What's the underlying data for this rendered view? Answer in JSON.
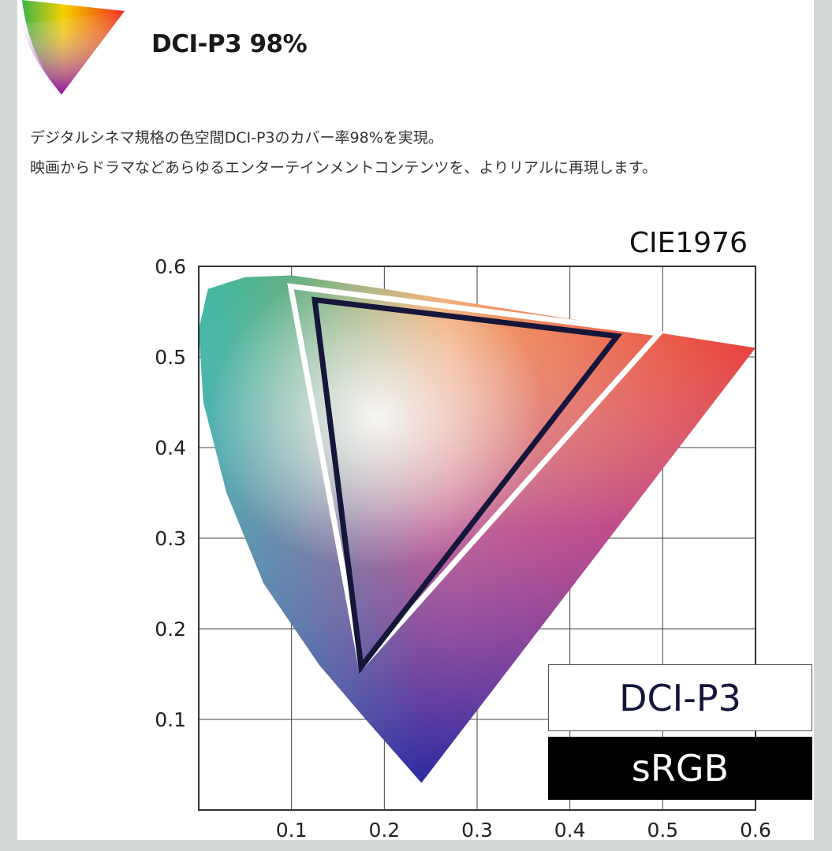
{
  "header": {
    "title": "DCI-P3 98%",
    "logo_icon": "color-gamut-triangle-icon"
  },
  "description": [
    "デジタルシネマ規格の色空間DCI-P3のカバー率98%を実現。",
    "映画からドラマなどあらゆるエンターテインメントコンテンツを、よりリアルに再現します。"
  ],
  "chart_data": {
    "type": "scatter",
    "title": "CIE1976",
    "xlim": [
      0,
      0.6
    ],
    "ylim": [
      0,
      0.6
    ],
    "x_ticks": [
      "0.1",
      "0.2",
      "0.3",
      "0.4",
      "0.5",
      "0.6"
    ],
    "y_ticks": [
      "0.1",
      "0.2",
      "0.3",
      "0.4",
      "0.5",
      "0.6"
    ],
    "grid": true,
    "legend": [
      "DCI-P3",
      "sRGB"
    ],
    "legend_placement": "bottom-right",
    "spectral_locus": [
      [
        0.6,
        0.51
      ],
      [
        0.35,
        0.55
      ],
      [
        0.2,
        0.575
      ],
      [
        0.1,
        0.59
      ],
      [
        0.05,
        0.588
      ],
      [
        0.01,
        0.575
      ],
      [
        0.0,
        0.53
      ],
      [
        0.005,
        0.45
      ],
      [
        0.03,
        0.35
      ],
      [
        0.07,
        0.25
      ],
      [
        0.13,
        0.16
      ],
      [
        0.18,
        0.1
      ],
      [
        0.24,
        0.03
      ],
      [
        0.6,
        0.51
      ]
    ],
    "series": [
      {
        "name": "DCI-P3",
        "points": [
          [
            0.099,
            0.578
          ],
          [
            0.496,
            0.526
          ],
          [
            0.175,
            0.158
          ]
        ],
        "color": "#ffffff"
      },
      {
        "name": "sRGB",
        "points": [
          [
            0.125,
            0.563
          ],
          [
            0.451,
            0.523
          ],
          [
            0.175,
            0.158
          ]
        ],
        "color": "#15163a"
      }
    ]
  }
}
